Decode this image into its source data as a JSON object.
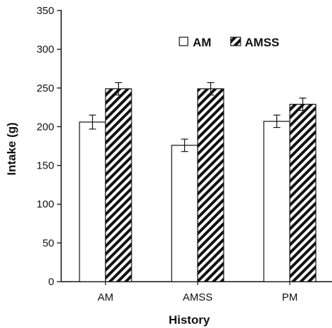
{
  "chart_data": {
    "type": "bar",
    "xlabel": "History",
    "ylabel": "Intake (g)",
    "ylim": [
      0,
      350
    ],
    "yticks": [
      "0",
      "50",
      "100",
      "150",
      "200",
      "250",
      "300",
      "350"
    ],
    "categories": [
      "AM",
      "AMSS",
      "PM"
    ],
    "series": [
      {
        "name": "AM",
        "values": [
          206,
          176,
          207
        ],
        "errors": [
          9,
          8,
          8
        ],
        "fill": "plain"
      },
      {
        "name": "AMSS",
        "values": [
          249,
          249,
          229
        ],
        "errors": [
          8,
          8,
          8
        ],
        "fill": "hatched"
      }
    ],
    "legend": "top-right",
    "grid": false,
    "colors": {
      "bar_outline": "#111111",
      "plain_fill": "#ffffff",
      "hatch": "#111111"
    }
  }
}
